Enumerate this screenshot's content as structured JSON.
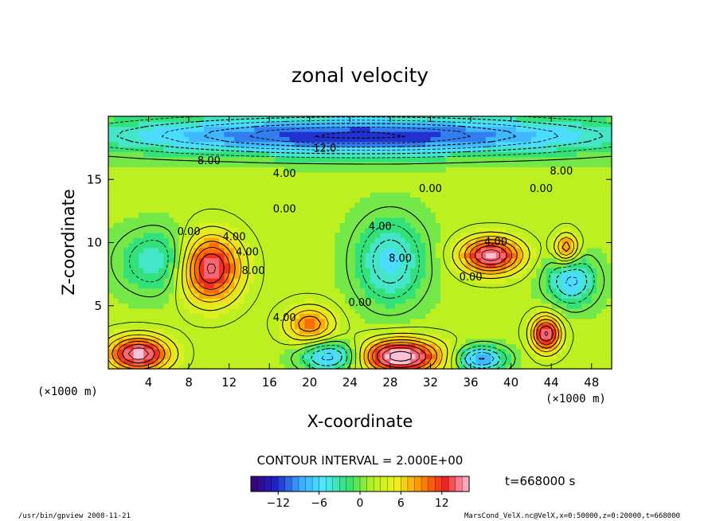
{
  "chart_data": {
    "type": "heatmap",
    "title": "zonal velocity",
    "xlabel": "X-coordinate",
    "ylabel": "Z-coordinate",
    "x_unit": "(×1000 m)",
    "y_unit": "(×1000 m)",
    "x_ticks": [
      "4",
      "8",
      "12",
      "16",
      "20",
      "24",
      "28",
      "32",
      "36",
      "40",
      "44",
      "48"
    ],
    "y_ticks": [
      "5",
      "10",
      "15"
    ],
    "xlim": [
      0,
      50
    ],
    "ylim": [
      0,
      20
    ],
    "contour_interval": "CONTOUR INTERVAL = 2.000E+00",
    "contour_labels": [
      {
        "text": "12.0",
        "x": 21.5,
        "y": 17.2
      },
      {
        "text": "8.00",
        "x": 10.0,
        "y": 16.2
      },
      {
        "text": "4.00",
        "x": 17.5,
        "y": 15.2
      },
      {
        "text": "0.00",
        "x": 32.0,
        "y": 14.0
      },
      {
        "text": "0.00",
        "x": 43.0,
        "y": 14.0
      },
      {
        "text": "8.00",
        "x": 45.0,
        "y": 15.4
      },
      {
        "text": "0.00",
        "x": 17.5,
        "y": 12.4
      },
      {
        "text": "0.00",
        "x": 8.0,
        "y": 10.6
      },
      {
        "text": "4.00",
        "x": 12.5,
        "y": 10.2
      },
      {
        "text": "4.00",
        "x": 13.8,
        "y": 9.0
      },
      {
        "text": "8.00",
        "x": 14.4,
        "y": 7.5
      },
      {
        "text": "4.00",
        "x": 27.0,
        "y": 11.0
      },
      {
        "text": "8.00",
        "x": 29.0,
        "y": 8.5
      },
      {
        "text": "4.00",
        "x": 38.5,
        "y": 9.8
      },
      {
        "text": "0.00",
        "x": 36.0,
        "y": 7.0
      },
      {
        "text": "0.00",
        "x": 25.0,
        "y": 5.0
      },
      {
        "text": "4.00",
        "x": 17.5,
        "y": 3.8
      }
    ],
    "colorbar": {
      "min": -16,
      "max": 16,
      "ticks": [
        -12,
        -6,
        0,
        6,
        12
      ],
      "tick_labels": [
        "−12",
        "−6",
        "0",
        "6",
        "12"
      ],
      "colormap": [
        "#3a0070",
        "#2020c8",
        "#3aa8ff",
        "#50e8ff",
        "#30e070",
        "#b8f020",
        "#f0f020",
        "#ff9000",
        "#f02020",
        "#ffc0d8"
      ]
    },
    "field_features": [
      {
        "kind": "jet",
        "x": 10,
        "y": 8.0,
        "value": 14,
        "extent_x": 3,
        "extent_z": 2.6
      },
      {
        "kind": "jet",
        "x": 38,
        "y": 9.0,
        "value": 14,
        "extent_x": 3,
        "extent_z": 1.4
      },
      {
        "kind": "jet",
        "x": 29,
        "y": 1.0,
        "value": 16,
        "extent_x": 4,
        "extent_z": 1.4
      },
      {
        "kind": "jet",
        "x": 43.5,
        "y": 2.8,
        "value": 13,
        "extent_x": 1.5,
        "extent_z": 1.4
      },
      {
        "kind": "jet",
        "x": 3,
        "y": 1.2,
        "value": 14,
        "extent_x": 3,
        "extent_z": 1.4
      },
      {
        "kind": "jet",
        "x": 45.5,
        "y": 9.5,
        "value": 9,
        "extent_x": 1.2,
        "extent_z": 1.2
      },
      {
        "kind": "jet",
        "x": 20,
        "y": 3.5,
        "value": 8,
        "extent_x": 2.5,
        "extent_z": 1.5
      },
      {
        "kind": "countercurrent",
        "x": 28,
        "y": 8.5,
        "value": -7,
        "extent_x": 3.5,
        "extent_z": 3.5
      },
      {
        "kind": "countercurrent",
        "x": 5,
        "y": 8.5,
        "value": -6,
        "extent_x": 4,
        "extent_z": 2.5
      },
      {
        "kind": "countercurrent",
        "x": 46,
        "y": 7.0,
        "value": -8,
        "extent_x": 2.5,
        "extent_z": 2
      },
      {
        "kind": "countercurrent",
        "x": 22,
        "y": 1.0,
        "value": -9,
        "extent_x": 3,
        "extent_z": 1.2
      },
      {
        "kind": "countercurrent",
        "x": 37,
        "y": 0.8,
        "value": -10,
        "extent_x": 2.5,
        "extent_z": 1
      },
      {
        "kind": "countercurrent",
        "x": 25,
        "y": 18.5,
        "value": -14,
        "extent_x": 25,
        "extent_z": 1.5
      }
    ]
  },
  "header": {
    "time_label": "t=668000 s"
  },
  "footer": {
    "left": "/usr/bin/gpview  2008-11-21",
    "right": "MarsCond_VelX.nc@VelX,x=0:50000,z=0:20000,t=668000"
  },
  "colors": {
    "background": "#ffffff",
    "ink": "#000000"
  }
}
